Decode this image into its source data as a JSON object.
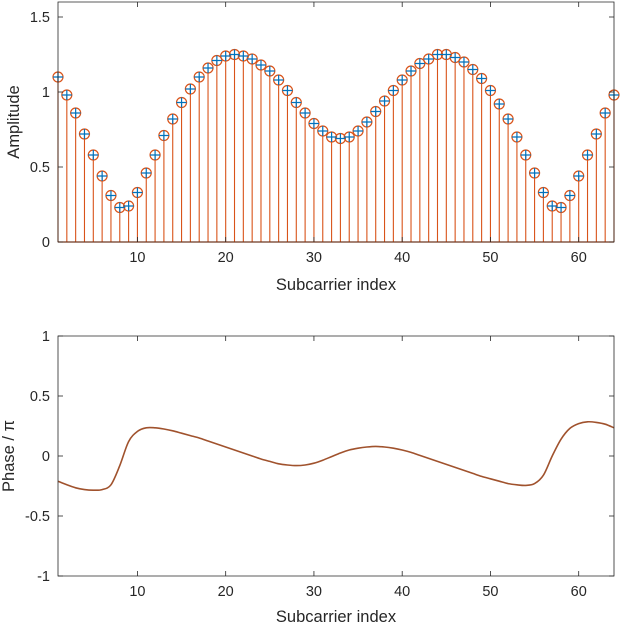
{
  "chart_data": [
    {
      "type": "stem",
      "xlabel": "Subcarrier index",
      "ylabel": "Amplitude",
      "xlim": [
        1,
        64
      ],
      "ylim": [
        0,
        1.6
      ],
      "xticks": [
        10,
        20,
        30,
        40,
        50,
        60
      ],
      "yticks": [
        0,
        0.5,
        1,
        1.5
      ],
      "ytick_labels": [
        "0",
        "0.5",
        "1",
        "1.5"
      ],
      "series": [
        {
          "marker": "circle",
          "color": "#d95319",
          "x": [
            1,
            2,
            3,
            4,
            5,
            6,
            7,
            8,
            9,
            10,
            11,
            12,
            13,
            14,
            15,
            16,
            17,
            18,
            19,
            20,
            21,
            22,
            23,
            24,
            25,
            26,
            27,
            28,
            29,
            30,
            31,
            32,
            33,
            34,
            35,
            36,
            37,
            38,
            39,
            40,
            41,
            42,
            43,
            44,
            45,
            46,
            47,
            48,
            49,
            50,
            51,
            52,
            53,
            54,
            55,
            56,
            57,
            58,
            59,
            60,
            61,
            62,
            63,
            64
          ],
          "values": [
            1.1,
            0.98,
            0.86,
            0.72,
            0.58,
            0.44,
            0.31,
            0.23,
            0.24,
            0.33,
            0.46,
            0.58,
            0.71,
            0.82,
            0.93,
            1.02,
            1.1,
            1.16,
            1.21,
            1.24,
            1.25,
            1.24,
            1.22,
            1.18,
            1.14,
            1.08,
            1.01,
            0.93,
            0.86,
            0.79,
            0.74,
            0.7,
            0.69,
            0.7,
            0.74,
            0.8,
            0.87,
            0.94,
            1.01,
            1.08,
            1.14,
            1.19,
            1.22,
            1.25,
            1.25,
            1.23,
            1.2,
            1.15,
            1.09,
            1.01,
            0.92,
            0.82,
            0.7,
            0.58,
            0.46,
            0.33,
            0.24,
            0.23,
            0.31,
            0.44,
            0.58,
            0.72,
            0.86,
            0.98
          ]
        },
        {
          "marker": "plus",
          "color": "#0072bd",
          "x": [
            1,
            2,
            3,
            4,
            5,
            6,
            7,
            8,
            9,
            10,
            11,
            12,
            13,
            14,
            15,
            16,
            17,
            18,
            19,
            20,
            21,
            22,
            23,
            24,
            25,
            26,
            27,
            28,
            29,
            30,
            31,
            32,
            33,
            34,
            35,
            36,
            37,
            38,
            39,
            40,
            41,
            42,
            43,
            44,
            45,
            46,
            47,
            48,
            49,
            50,
            51,
            52,
            53,
            54,
            55,
            56,
            57,
            58,
            59,
            60,
            61,
            62,
            63,
            64
          ],
          "values": [
            1.1,
            0.98,
            0.86,
            0.72,
            0.58,
            0.44,
            0.31,
            0.23,
            0.24,
            0.33,
            0.46,
            0.58,
            0.71,
            0.82,
            0.93,
            1.02,
            1.1,
            1.16,
            1.21,
            1.24,
            1.25,
            1.24,
            1.22,
            1.18,
            1.14,
            1.08,
            1.01,
            0.93,
            0.86,
            0.79,
            0.74,
            0.7,
            0.69,
            0.7,
            0.74,
            0.8,
            0.87,
            0.94,
            1.01,
            1.08,
            1.14,
            1.19,
            1.22,
            1.25,
            1.25,
            1.23,
            1.2,
            1.15,
            1.09,
            1.01,
            0.92,
            0.82,
            0.7,
            0.58,
            0.46,
            0.33,
            0.24,
            0.23,
            0.31,
            0.44,
            0.58,
            0.72,
            0.86,
            0.98
          ]
        }
      ]
    },
    {
      "type": "line",
      "xlabel": "Subcarrier index",
      "ylabel": "Phase / π",
      "xlim": [
        1,
        64
      ],
      "ylim": [
        -1,
        1
      ],
      "xticks": [
        10,
        20,
        30,
        40,
        50,
        60
      ],
      "yticks": [
        -1,
        -0.5,
        0,
        0.5,
        1
      ],
      "ytick_labels": [
        "-1",
        "-0.5",
        "0",
        "0.5",
        "1"
      ],
      "series": [
        {
          "color": "#a0522d",
          "x": [
            1,
            2,
            3,
            4,
            5,
            6,
            7,
            8,
            9,
            10,
            11,
            12,
            13,
            14,
            15,
            16,
            17,
            18,
            19,
            20,
            21,
            22,
            23,
            24,
            25,
            26,
            27,
            28,
            29,
            30,
            31,
            32,
            33,
            34,
            35,
            36,
            37,
            38,
            39,
            40,
            41,
            42,
            43,
            44,
            45,
            46,
            47,
            48,
            49,
            50,
            51,
            52,
            53,
            54,
            55,
            56,
            57,
            58,
            59,
            60,
            61,
            62,
            63,
            64
          ],
          "values": [
            -0.21,
            -0.24,
            -0.265,
            -0.28,
            -0.285,
            -0.28,
            -0.24,
            -0.08,
            0.12,
            0.205,
            0.235,
            0.235,
            0.225,
            0.21,
            0.19,
            0.17,
            0.15,
            0.125,
            0.1,
            0.075,
            0.05,
            0.025,
            0.0,
            -0.025,
            -0.045,
            -0.065,
            -0.075,
            -0.08,
            -0.075,
            -0.06,
            -0.035,
            -0.005,
            0.025,
            0.05,
            0.065,
            0.075,
            0.08,
            0.075,
            0.065,
            0.05,
            0.03,
            0.005,
            -0.02,
            -0.045,
            -0.07,
            -0.095,
            -0.12,
            -0.145,
            -0.17,
            -0.19,
            -0.21,
            -0.23,
            -0.24,
            -0.245,
            -0.23,
            -0.16,
            0.0,
            0.14,
            0.23,
            0.27,
            0.285,
            0.28,
            0.265,
            0.235
          ]
        }
      ]
    }
  ]
}
